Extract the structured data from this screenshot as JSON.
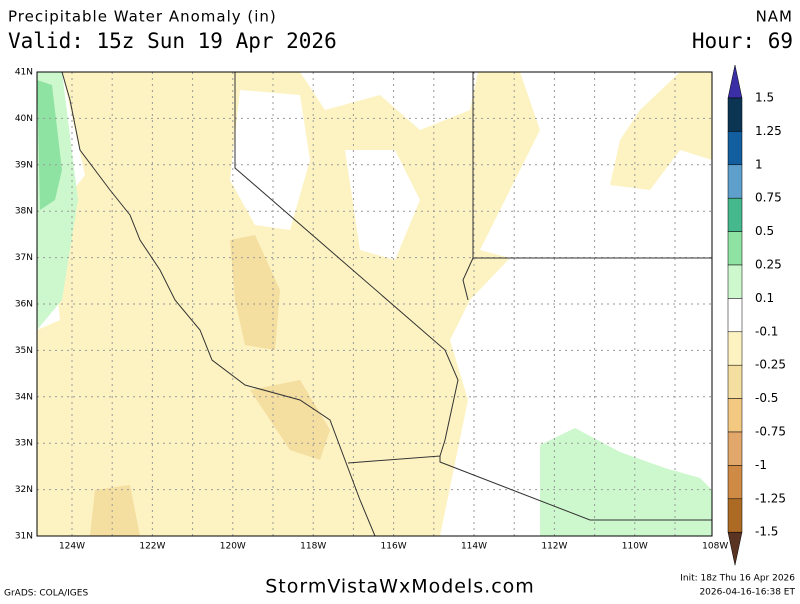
{
  "header": {
    "title": "Precipitable Water Anomaly (in)",
    "valid": "Valid: 15z Sun 19 Apr 2026",
    "model": "NAM",
    "hour": "Hour: 69"
  },
  "map": {
    "lat_labels": [
      "41N",
      "40N",
      "39N",
      "38N",
      "37N",
      "36N",
      "35N",
      "34N",
      "33N",
      "32N",
      "31N"
    ],
    "lon_labels": [
      "124W",
      "122W",
      "120W",
      "118W",
      "116W",
      "114W",
      "112W",
      "110W",
      "108W"
    ]
  },
  "colorbar": {
    "labels": [
      "1.5",
      "1.25",
      "1",
      "0.75",
      "0.5",
      "0.25",
      "0.1",
      "-0.1",
      "-0.25",
      "-0.5",
      "-0.75",
      "-1",
      "-1.25",
      "-1.5"
    ],
    "colors": [
      "#3b2fa6",
      "#0c3553",
      "#135e9e",
      "#5f9fcb",
      "#46b88e",
      "#8fe3a2",
      "#cdf8cd",
      "#ffffff",
      "#fdf3c2",
      "#f4dea0",
      "#f3c982",
      "#e2a76a",
      "#cf8a45",
      "#ad6a24",
      "#5a3422"
    ]
  },
  "footer": {
    "credit": "GrADS: COLA/IGES",
    "site": "StormVistaWxModels.com",
    "init": "Init: 18z Thu 16 Apr 2026",
    "stamp": "2026-04-16-16:38 ET"
  }
}
